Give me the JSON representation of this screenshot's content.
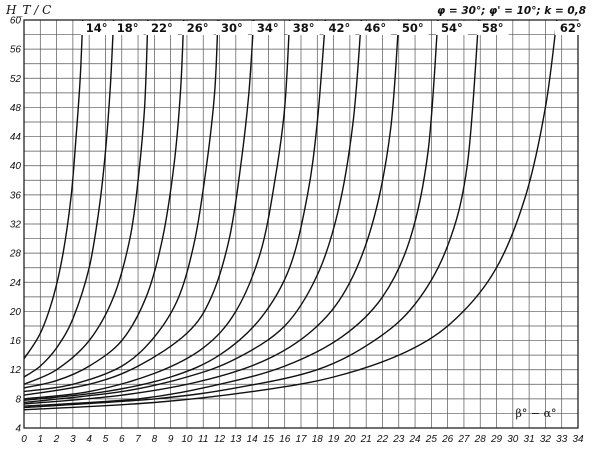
{
  "chart_data": {
    "type": "line",
    "title": "",
    "ylabel": "H_T / C",
    "xlabel": "β° − α°",
    "parameters": "φ = 30°; φ' = 10°; k = 0,8",
    "xlim": [
      0,
      34
    ],
    "ylim": [
      4,
      60
    ],
    "x_ticks": [
      0,
      1,
      2,
      3,
      4,
      5,
      6,
      7,
      8,
      9,
      10,
      11,
      12,
      13,
      14,
      15,
      16,
      17,
      18,
      19,
      20,
      21,
      22,
      23,
      24,
      25,
      26,
      27,
      28,
      29,
      30,
      31,
      32,
      33,
      34
    ],
    "y_ticks": [
      4,
      8,
      12,
      16,
      20,
      24,
      28,
      32,
      36,
      40,
      44,
      48,
      52,
      56,
      60
    ],
    "grid": true,
    "series": [
      {
        "name": "14°",
        "points": [
          [
            0,
            13.5
          ],
          [
            1,
            17
          ],
          [
            1.8,
            22
          ],
          [
            2.4,
            28
          ],
          [
            2.9,
            36
          ],
          [
            3.2,
            44
          ],
          [
            3.45,
            52
          ],
          [
            3.6,
            60
          ]
        ]
      },
      {
        "name": "18°",
        "points": [
          [
            0,
            11
          ],
          [
            1,
            12.5
          ],
          [
            2,
            15
          ],
          [
            3,
            19
          ],
          [
            4,
            26
          ],
          [
            4.6,
            34
          ],
          [
            5,
            42
          ],
          [
            5.3,
            51
          ],
          [
            5.5,
            60
          ]
        ]
      },
      {
        "name": "22°",
        "points": [
          [
            0,
            10
          ],
          [
            2,
            12
          ],
          [
            4,
            16
          ],
          [
            5.5,
            22
          ],
          [
            6.5,
            30
          ],
          [
            7,
            38
          ],
          [
            7.4,
            48
          ],
          [
            7.6,
            60
          ]
        ]
      },
      {
        "name": "26°",
        "points": [
          [
            0,
            9.5
          ],
          [
            2,
            10.5
          ],
          [
            4,
            12.5
          ],
          [
            6,
            16
          ],
          [
            7.5,
            22
          ],
          [
            8.5,
            30
          ],
          [
            9.2,
            40
          ],
          [
            9.6,
            50
          ],
          [
            9.8,
            60
          ]
        ]
      },
      {
        "name": "30°",
        "points": [
          [
            0,
            9
          ],
          [
            3,
            10
          ],
          [
            6,
            12.5
          ],
          [
            8,
            16.5
          ],
          [
            9.5,
            22
          ],
          [
            10.5,
            30
          ],
          [
            11.2,
            40
          ],
          [
            11.7,
            50
          ],
          [
            11.9,
            60
          ]
        ]
      },
      {
        "name": "34°",
        "points": [
          [
            0,
            8.5
          ],
          [
            4,
            10
          ],
          [
            7,
            12.5
          ],
          [
            10,
            17
          ],
          [
            11.5,
            22
          ],
          [
            12.6,
            30
          ],
          [
            13.3,
            40
          ],
          [
            13.8,
            50
          ],
          [
            14.1,
            60
          ]
        ]
      },
      {
        "name": "38°",
        "points": [
          [
            0,
            8
          ],
          [
            4,
            9
          ],
          [
            8,
            11.5
          ],
          [
            11,
            15
          ],
          [
            13,
            20
          ],
          [
            14.5,
            28
          ],
          [
            15.4,
            38
          ],
          [
            16,
            48
          ],
          [
            16.3,
            60
          ]
        ]
      },
      {
        "name": "42°",
        "points": [
          [
            0,
            7.8
          ],
          [
            5,
            9
          ],
          [
            9,
            11
          ],
          [
            12,
            14
          ],
          [
            14.5,
            19
          ],
          [
            16.3,
            26
          ],
          [
            17.4,
            36
          ],
          [
            18,
            46
          ],
          [
            18.5,
            60
          ]
        ]
      },
      {
        "name": "46°",
        "points": [
          [
            0,
            7.5
          ],
          [
            6,
            9
          ],
          [
            10,
            11
          ],
          [
            13,
            13.5
          ],
          [
            16,
            18
          ],
          [
            18,
            25
          ],
          [
            19.3,
            34
          ],
          [
            20.2,
            46
          ],
          [
            20.7,
            60
          ]
        ]
      },
      {
        "name": "50°",
        "points": [
          [
            0,
            7.3
          ],
          [
            6,
            8.5
          ],
          [
            11,
            10.5
          ],
          [
            15,
            13.5
          ],
          [
            18,
            18
          ],
          [
            20,
            24
          ],
          [
            21.5,
            33
          ],
          [
            22.5,
            45
          ],
          [
            23,
            60
          ]
        ]
      },
      {
        "name": "54°",
        "points": [
          [
            0,
            7
          ],
          [
            7,
            8
          ],
          [
            12,
            10
          ],
          [
            16,
            12.5
          ],
          [
            19.5,
            16.5
          ],
          [
            22,
            22
          ],
          [
            23.7,
            30
          ],
          [
            24.8,
            42
          ],
          [
            25.4,
            60
          ]
        ]
      },
      {
        "name": "58°",
        "points": [
          [
            0,
            6.8
          ],
          [
            8,
            8
          ],
          [
            13,
            9.5
          ],
          [
            18,
            12
          ],
          [
            21.5,
            16
          ],
          [
            24,
            21
          ],
          [
            26,
            29
          ],
          [
            27.2,
            40
          ],
          [
            27.9,
            60
          ]
        ]
      },
      {
        "name": "62°",
        "points": [
          [
            0,
            6.5
          ],
          [
            8,
            7.5
          ],
          [
            14,
            9
          ],
          [
            19,
            11
          ],
          [
            23.5,
            14.5
          ],
          [
            26.5,
            19
          ],
          [
            29,
            26
          ],
          [
            30.8,
            36
          ],
          [
            32,
            48
          ],
          [
            32.7,
            60
          ]
        ]
      }
    ]
  }
}
